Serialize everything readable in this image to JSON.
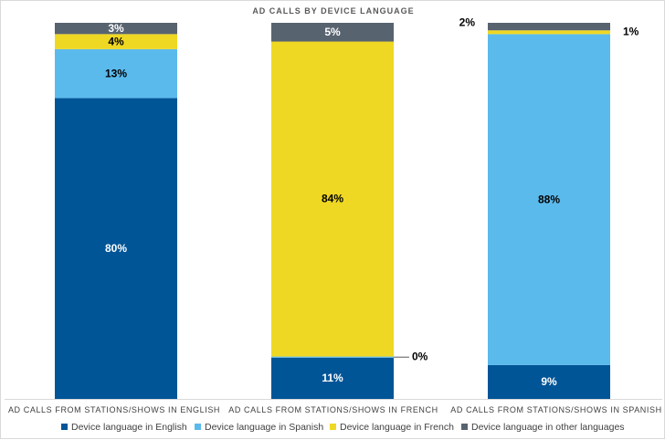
{
  "chart_data": {
    "type": "bar",
    "stacked": true,
    "percent_stacked": true,
    "title": "AD CALLS  BY DEVICE LANGUAGE",
    "categories": [
      "AD CALLS FROM STATIONS/SHOWS IN  ENGLISH",
      "AD CALLS FROM STATIONS/SHOWS IN FRENCH",
      "AD CALLS FROM STATIONS/SHOWS IN SPANISH"
    ],
    "series": [
      {
        "name": "Device language in English",
        "color": "#005597",
        "values": [
          80,
          11,
          9
        ],
        "labels": [
          "80%",
          "11%",
          "9%"
        ]
      },
      {
        "name": "Device language in Spanish",
        "color": "#5BBAEC",
        "values": [
          13,
          0.3,
          88
        ],
        "labels": [
          "13%",
          "0%",
          "88%"
        ]
      },
      {
        "name": "Device language in French",
        "color": "#EFD823",
        "values": [
          4,
          84,
          1
        ],
        "labels": [
          "4%",
          "84%",
          "1%"
        ]
      },
      {
        "name": "Device language in other languages",
        "color": "#586370",
        "values": [
          3,
          5,
          2
        ],
        "labels": [
          "3%",
          "5%",
          "2%"
        ]
      }
    ],
    "ylim": [
      0,
      100
    ],
    "grid": false,
    "legend_position": "bottom"
  }
}
